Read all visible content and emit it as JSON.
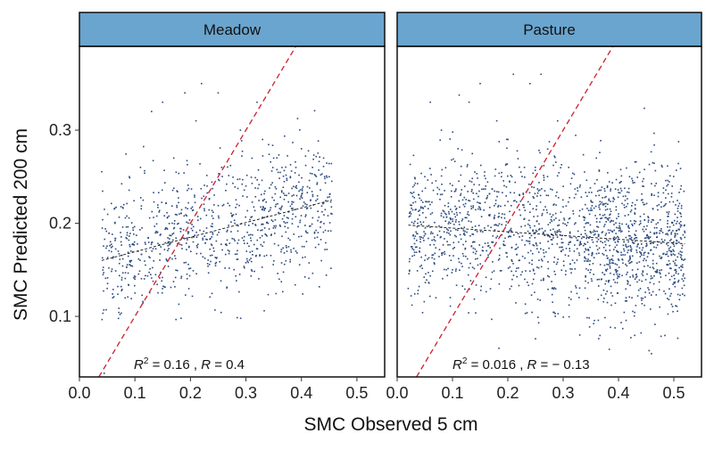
{
  "chart_data": {
    "type": "scatter",
    "xlabel": "SMC Observed 5 cm",
    "ylabel": "SMC Predicted 200 cm",
    "xlim": [
      0.0,
      0.55
    ],
    "ylim": [
      0.035,
      0.39
    ],
    "xticks": [
      0.0,
      0.1,
      0.2,
      0.3,
      0.4,
      0.5
    ],
    "xtick_labels": [
      "0.0",
      "0.1",
      "0.2",
      "0.3",
      "0.4",
      "0.5"
    ],
    "yticks": [
      0.1,
      0.2,
      0.3
    ],
    "ytick_labels": [
      "0.1",
      "0.2",
      "0.3"
    ],
    "grid": false,
    "colors": {
      "points": "#2b4a7e",
      "identity_line": "#cc1f2e",
      "fit_line": "#111111",
      "strip": "#6aa5cf"
    },
    "panels": [
      {
        "label": "Meadow",
        "annotation": {
          "r2_label": "R",
          "r2_sup": "2",
          "r2_value": " = 0.16 , ",
          "r_label": "R",
          "r_value": " = 0.4"
        },
        "fit_line": {
          "x": [
            0.04,
            0.455
          ],
          "y": [
            0.16,
            0.225
          ]
        },
        "identity_line": {
          "x": [
            0.035,
            0.39
          ],
          "y": [
            0.035,
            0.39
          ]
        },
        "points": [
          [
            0.045,
            0.215
          ],
          [
            0.05,
            0.13
          ],
          [
            0.06,
            0.12
          ],
          [
            0.07,
            0.17
          ],
          [
            0.08,
            0.22
          ],
          [
            0.09,
            0.25
          ],
          [
            0.1,
            0.14
          ],
          [
            0.11,
            0.26
          ],
          [
            0.12,
            0.17
          ],
          [
            0.13,
            0.32
          ],
          [
            0.14,
            0.19
          ],
          [
            0.15,
            0.33
          ],
          [
            0.16,
            0.18
          ],
          [
            0.17,
            0.27
          ],
          [
            0.18,
            0.21
          ],
          [
            0.19,
            0.34
          ],
          [
            0.2,
            0.2
          ],
          [
            0.21,
            0.31
          ],
          [
            0.22,
            0.35
          ],
          [
            0.23,
            0.24
          ],
          [
            0.24,
            0.19
          ],
          [
            0.25,
            0.34
          ],
          [
            0.26,
            0.22
          ],
          [
            0.27,
            0.17
          ],
          [
            0.28,
            0.2
          ],
          [
            0.29,
            0.3
          ],
          [
            0.3,
            0.24
          ],
          [
            0.31,
            0.15
          ],
          [
            0.32,
            0.33
          ],
          [
            0.33,
            0.29
          ],
          [
            0.34,
            0.2
          ],
          [
            0.35,
            0.27
          ],
          [
            0.36,
            0.14
          ],
          [
            0.37,
            0.23
          ],
          [
            0.38,
            0.25
          ],
          [
            0.39,
            0.17
          ],
          [
            0.4,
            0.28
          ],
          [
            0.41,
            0.22
          ],
          [
            0.42,
            0.26
          ],
          [
            0.43,
            0.19
          ],
          [
            0.44,
            0.27
          ],
          [
            0.45,
            0.25
          ],
          [
            0.455,
            0.21
          ]
        ]
      },
      {
        "label": "Pasture",
        "annotation": {
          "r2_label": "R",
          "r2_sup": "2",
          "r2_value": " = 0.016 , ",
          "r_label": "R",
          "r_value": " = − 0.13"
        },
        "fit_line": {
          "x": [
            0.02,
            0.52
          ],
          "y": [
            0.198,
            0.178
          ]
        },
        "identity_line": {
          "x": [
            0.035,
            0.39
          ],
          "y": [
            0.035,
            0.39
          ]
        },
        "points": [
          [
            0.02,
            0.13
          ],
          [
            0.03,
            0.2
          ],
          [
            0.04,
            0.17
          ],
          [
            0.05,
            0.25
          ],
          [
            0.06,
            0.33
          ],
          [
            0.07,
            0.12
          ],
          [
            0.08,
            0.3
          ],
          [
            0.09,
            0.19
          ],
          [
            0.1,
            0.15
          ],
          [
            0.11,
            0.28
          ],
          [
            0.12,
            0.22
          ],
          [
            0.13,
            0.33
          ],
          [
            0.14,
            0.18
          ],
          [
            0.15,
            0.35
          ],
          [
            0.16,
            0.24
          ],
          [
            0.17,
            0.14
          ],
          [
            0.18,
            0.31
          ],
          [
            0.19,
            0.21
          ],
          [
            0.2,
            0.29
          ],
          [
            0.21,
            0.36
          ],
          [
            0.22,
            0.16
          ],
          [
            0.23,
            0.26
          ],
          [
            0.24,
            0.35
          ],
          [
            0.25,
            0.19
          ],
          [
            0.26,
            0.36
          ],
          [
            0.27,
            0.23
          ],
          [
            0.28,
            0.13
          ],
          [
            0.29,
            0.31
          ],
          [
            0.3,
            0.2
          ],
          [
            0.31,
            0.26
          ],
          [
            0.32,
            0.17
          ],
          [
            0.33,
            0.08
          ],
          [
            0.34,
            0.22
          ],
          [
            0.35,
            0.15
          ],
          [
            0.36,
            0.27
          ],
          [
            0.37,
            0.19
          ],
          [
            0.38,
            0.24
          ],
          [
            0.39,
            0.16
          ],
          [
            0.4,
            0.21
          ],
          [
            0.41,
            0.18
          ],
          [
            0.42,
            0.25
          ],
          [
            0.43,
            0.14
          ],
          [
            0.44,
            0.2
          ],
          [
            0.45,
            0.16
          ],
          [
            0.46,
            0.23
          ],
          [
            0.47,
            0.15
          ],
          [
            0.48,
            0.19
          ],
          [
            0.49,
            0.21
          ],
          [
            0.5,
            0.17
          ],
          [
            0.51,
            0.2
          ],
          [
            0.52,
            0.19
          ]
        ]
      }
    ]
  }
}
